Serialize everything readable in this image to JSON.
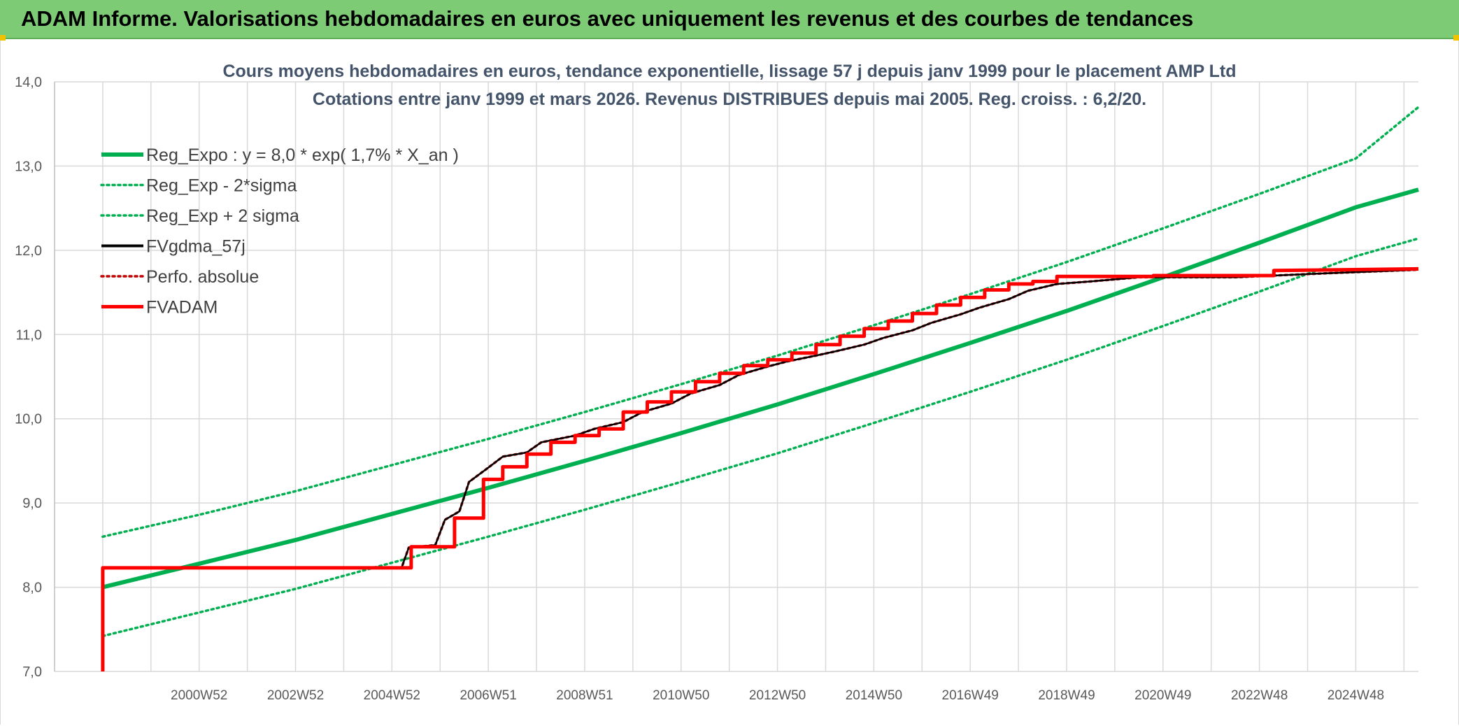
{
  "banner": {
    "title": "ADAM Informe. Valorisations hebdomadaires en euros avec uniquement les revenus et des courbes de tendances"
  },
  "colors": {
    "banner_bg": "#7ecb76",
    "reg_expo": "#00b050",
    "fvgdma": "#000000",
    "fvadam": "#ff0000",
    "perfo": "#c00000",
    "grid": "#d9d9d9"
  },
  "chart_data": {
    "type": "line",
    "title": "Cours moyens hebdomadaires en euros, tendance exponentielle, lissage 57 j depuis janv 1999 pour le placement AMP Ltd",
    "subtitle": "Cotations entre janv 1999 et mars 2026. Revenus DISTRIBUES depuis mai 2005. Reg. croiss. : 6,2/20.",
    "xlabel": "",
    "ylabel": "",
    "ylim": [
      7.0,
      14.0
    ],
    "yticks": [
      "7,0",
      "8,0",
      "9,0",
      "10,0",
      "11,0",
      "12,0",
      "13,0",
      "14,0"
    ],
    "xlim": [
      1998,
      2026.3
    ],
    "xtick_labels": [
      "2000W52",
      "2002W52",
      "2004W52",
      "2006W51",
      "2008W51",
      "2010W50",
      "2012W50",
      "2014W50",
      "2016W49",
      "2018W49",
      "2020W49",
      "2022W48",
      "2024W48"
    ],
    "xtick_years": [
      2001,
      2003,
      2005,
      2007,
      2009,
      2011,
      2013,
      2015,
      2017,
      2019,
      2021,
      2023,
      2025
    ],
    "grid": true,
    "legend_position": "top-left",
    "series": [
      {
        "name": "Reg_Expo : y = 8,0 * exp( 1,7% *  X_an )",
        "style": "solid-thick",
        "color": "#00b050",
        "x": [
          1999,
          2001,
          2003,
          2005,
          2007,
          2009,
          2011,
          2013,
          2015,
          2017,
          2019,
          2021,
          2023,
          2025,
          2026.3
        ],
        "y": [
          8.0,
          8.28,
          8.56,
          8.87,
          9.18,
          9.5,
          9.83,
          10.17,
          10.53,
          10.9,
          11.28,
          11.68,
          12.09,
          12.51,
          12.72
        ]
      },
      {
        "name": "Reg_Exp - 2*sigma",
        "style": "dotted",
        "color": "#00b050",
        "x": [
          1999,
          2001,
          2003,
          2005,
          2007,
          2009,
          2011,
          2013,
          2015,
          2017,
          2019,
          2021,
          2023,
          2025,
          2026.3
        ],
        "y": [
          7.42,
          7.7,
          7.98,
          8.29,
          8.6,
          8.92,
          9.25,
          9.59,
          9.95,
          10.32,
          10.7,
          11.1,
          11.51,
          11.93,
          12.14
        ]
      },
      {
        "name": "Reg_Exp + 2 sigma",
        "style": "dotted",
        "color": "#00b050",
        "x": [
          1999,
          2001,
          2003,
          2005,
          2007,
          2009,
          2011,
          2013,
          2015,
          2017,
          2019,
          2021,
          2023,
          2025,
          2026.3
        ],
        "y": [
          8.6,
          8.86,
          9.14,
          9.45,
          9.76,
          10.08,
          10.41,
          10.75,
          11.11,
          11.48,
          11.86,
          12.26,
          12.67,
          13.09,
          13.7
        ]
      },
      {
        "name": "FVgdma_57j",
        "style": "solid",
        "color": "#000000",
        "x": [
          1999,
          2005.2,
          2005.35,
          2005.9,
          2006.1,
          2006.4,
          2006.6,
          2007.0,
          2007.3,
          2007.8,
          2008.1,
          2008.8,
          2009.2,
          2009.8,
          2010.2,
          2010.8,
          2011.2,
          2011.8,
          2012.2,
          2012.8,
          2013.2,
          2013.8,
          2014.2,
          2014.8,
          2015.2,
          2015.8,
          2016.2,
          2016.8,
          2017.2,
          2017.8,
          2018.2,
          2018.8,
          2019.5,
          2020.5,
          2022.5,
          2024.5,
          2026.3
        ],
        "y": [
          8.23,
          8.23,
          8.47,
          8.5,
          8.8,
          8.9,
          9.25,
          9.42,
          9.55,
          9.6,
          9.72,
          9.8,
          9.88,
          9.96,
          10.08,
          10.18,
          10.3,
          10.4,
          10.52,
          10.62,
          10.68,
          10.75,
          10.8,
          10.88,
          10.96,
          11.05,
          11.14,
          11.24,
          11.32,
          11.42,
          11.52,
          11.6,
          11.63,
          11.68,
          11.68,
          11.73,
          11.77
        ]
      },
      {
        "name": "Perfo. absolue",
        "style": "dotted",
        "color": "#c00000",
        "x": [
          1999,
          2005.2,
          2005.35,
          2005.9,
          2006.1,
          2006.4,
          2006.6,
          2007.0,
          2007.3,
          2007.8,
          2008.1,
          2008.8,
          2009.2,
          2009.8,
          2010.2,
          2010.8,
          2011.2,
          2011.8,
          2012.2,
          2012.8,
          2013.2,
          2013.8,
          2014.2,
          2014.8,
          2015.2,
          2015.8,
          2016.2,
          2016.8,
          2017.2,
          2017.8,
          2018.2,
          2018.8,
          2019.5,
          2020.5,
          2022.5,
          2024.5,
          2026.3
        ],
        "y": [
          8.23,
          8.23,
          8.47,
          8.5,
          8.8,
          8.9,
          9.25,
          9.42,
          9.55,
          9.6,
          9.72,
          9.8,
          9.88,
          9.96,
          10.08,
          10.18,
          10.3,
          10.4,
          10.52,
          10.62,
          10.68,
          10.75,
          10.8,
          10.88,
          10.96,
          11.05,
          11.14,
          11.24,
          11.32,
          11.42,
          11.52,
          11.6,
          11.63,
          11.68,
          11.68,
          11.73,
          11.77
        ]
      },
      {
        "name": "FVADAM",
        "style": "step-thick",
        "color": "#ff0000",
        "x": [
          1999,
          1999,
          2005.4,
          2005.4,
          2006.3,
          2006.3,
          2006.9,
          2006.9,
          2007.3,
          2007.3,
          2007.8,
          2007.8,
          2008.3,
          2008.3,
          2008.8,
          2008.8,
          2009.3,
          2009.3,
          2009.8,
          2009.8,
          2010.3,
          2010.3,
          2010.8,
          2010.8,
          2011.3,
          2011.3,
          2011.8,
          2011.8,
          2012.3,
          2012.3,
          2012.8,
          2012.8,
          2013.3,
          2013.3,
          2013.8,
          2013.8,
          2014.3,
          2014.3,
          2014.8,
          2014.8,
          2015.3,
          2015.3,
          2015.8,
          2015.8,
          2016.3,
          2016.3,
          2016.8,
          2016.8,
          2017.3,
          2017.3,
          2017.8,
          2017.8,
          2018.3,
          2018.3,
          2018.8,
          2018.8,
          2020.8,
          2020.8,
          2023.3,
          2023.3,
          2026.3
        ],
        "y": [
          7.0,
          8.23,
          8.23,
          8.48,
          8.48,
          8.82,
          8.82,
          9.28,
          9.28,
          9.43,
          9.43,
          9.58,
          9.58,
          9.72,
          9.72,
          9.8,
          9.8,
          9.88,
          9.88,
          10.08,
          10.08,
          10.2,
          10.2,
          10.32,
          10.32,
          10.44,
          10.44,
          10.54,
          10.54,
          10.63,
          10.63,
          10.7,
          10.7,
          10.78,
          10.78,
          10.88,
          10.88,
          10.98,
          10.98,
          11.07,
          11.07,
          11.16,
          11.16,
          11.25,
          11.25,
          11.35,
          11.35,
          11.44,
          11.44,
          11.53,
          11.53,
          11.6,
          11.6,
          11.63,
          11.63,
          11.69,
          11.69,
          11.7,
          11.7,
          11.76,
          11.78
        ]
      }
    ]
  }
}
